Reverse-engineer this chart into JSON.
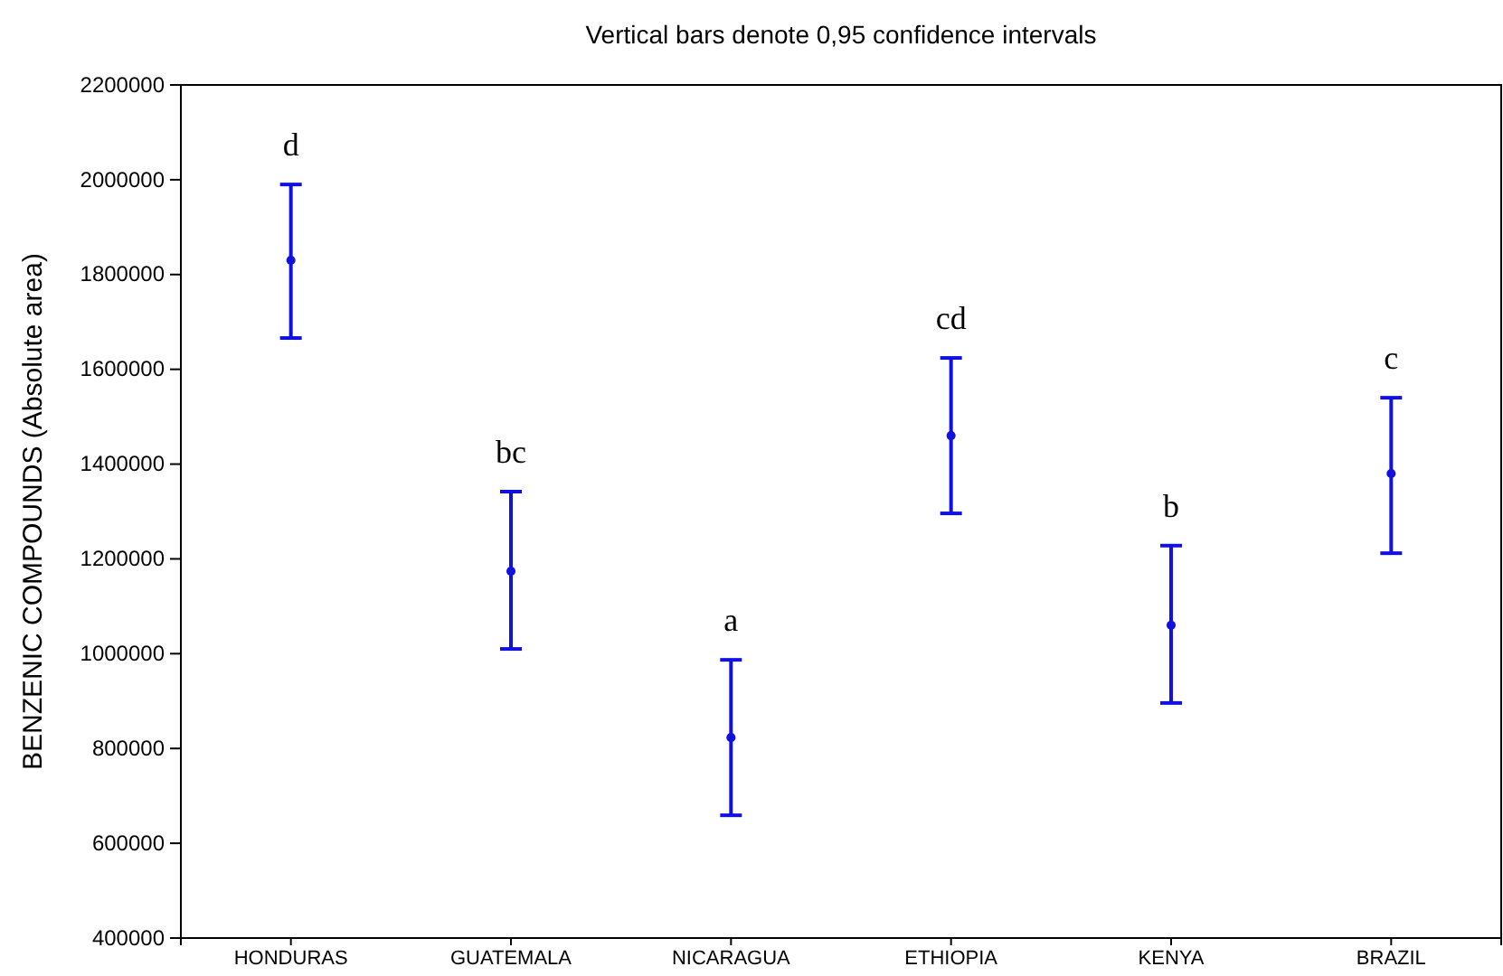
{
  "chart_data": {
    "type": "scatter",
    "title": "Vertical bars denote 0,95 confidence intervals",
    "ylabel": "BENZENIC COMPOUNDS (Absolute area)",
    "categories": [
      "HONDURAS",
      "GUATEMALA",
      "NICARAGUA",
      "ETHIOPIA",
      "KENYA",
      "BRAZIL"
    ],
    "series": [
      {
        "color": "#1010e0",
        "values": [
          1830000,
          1174000,
          823000,
          1460000,
          1060000,
          1380000
        ],
        "errors": [
          [
            1666000,
            1990000
          ],
          [
            1010000,
            1342000
          ],
          [
            659000,
            987000
          ],
          [
            1296000,
            1624000
          ],
          [
            896000,
            1228000
          ],
          [
            1212000,
            1540000
          ]
        ]
      }
    ],
    "ylim": [
      400000,
      2200000
    ],
    "yticks": [
      400000,
      600000,
      800000,
      1000000,
      1200000,
      1400000,
      1600000,
      1800000,
      2000000,
      2200000
    ],
    "marker": "circle",
    "grid": false,
    "annotations": [
      "d",
      "bc",
      "a",
      "cd",
      "b",
      "c"
    ]
  }
}
